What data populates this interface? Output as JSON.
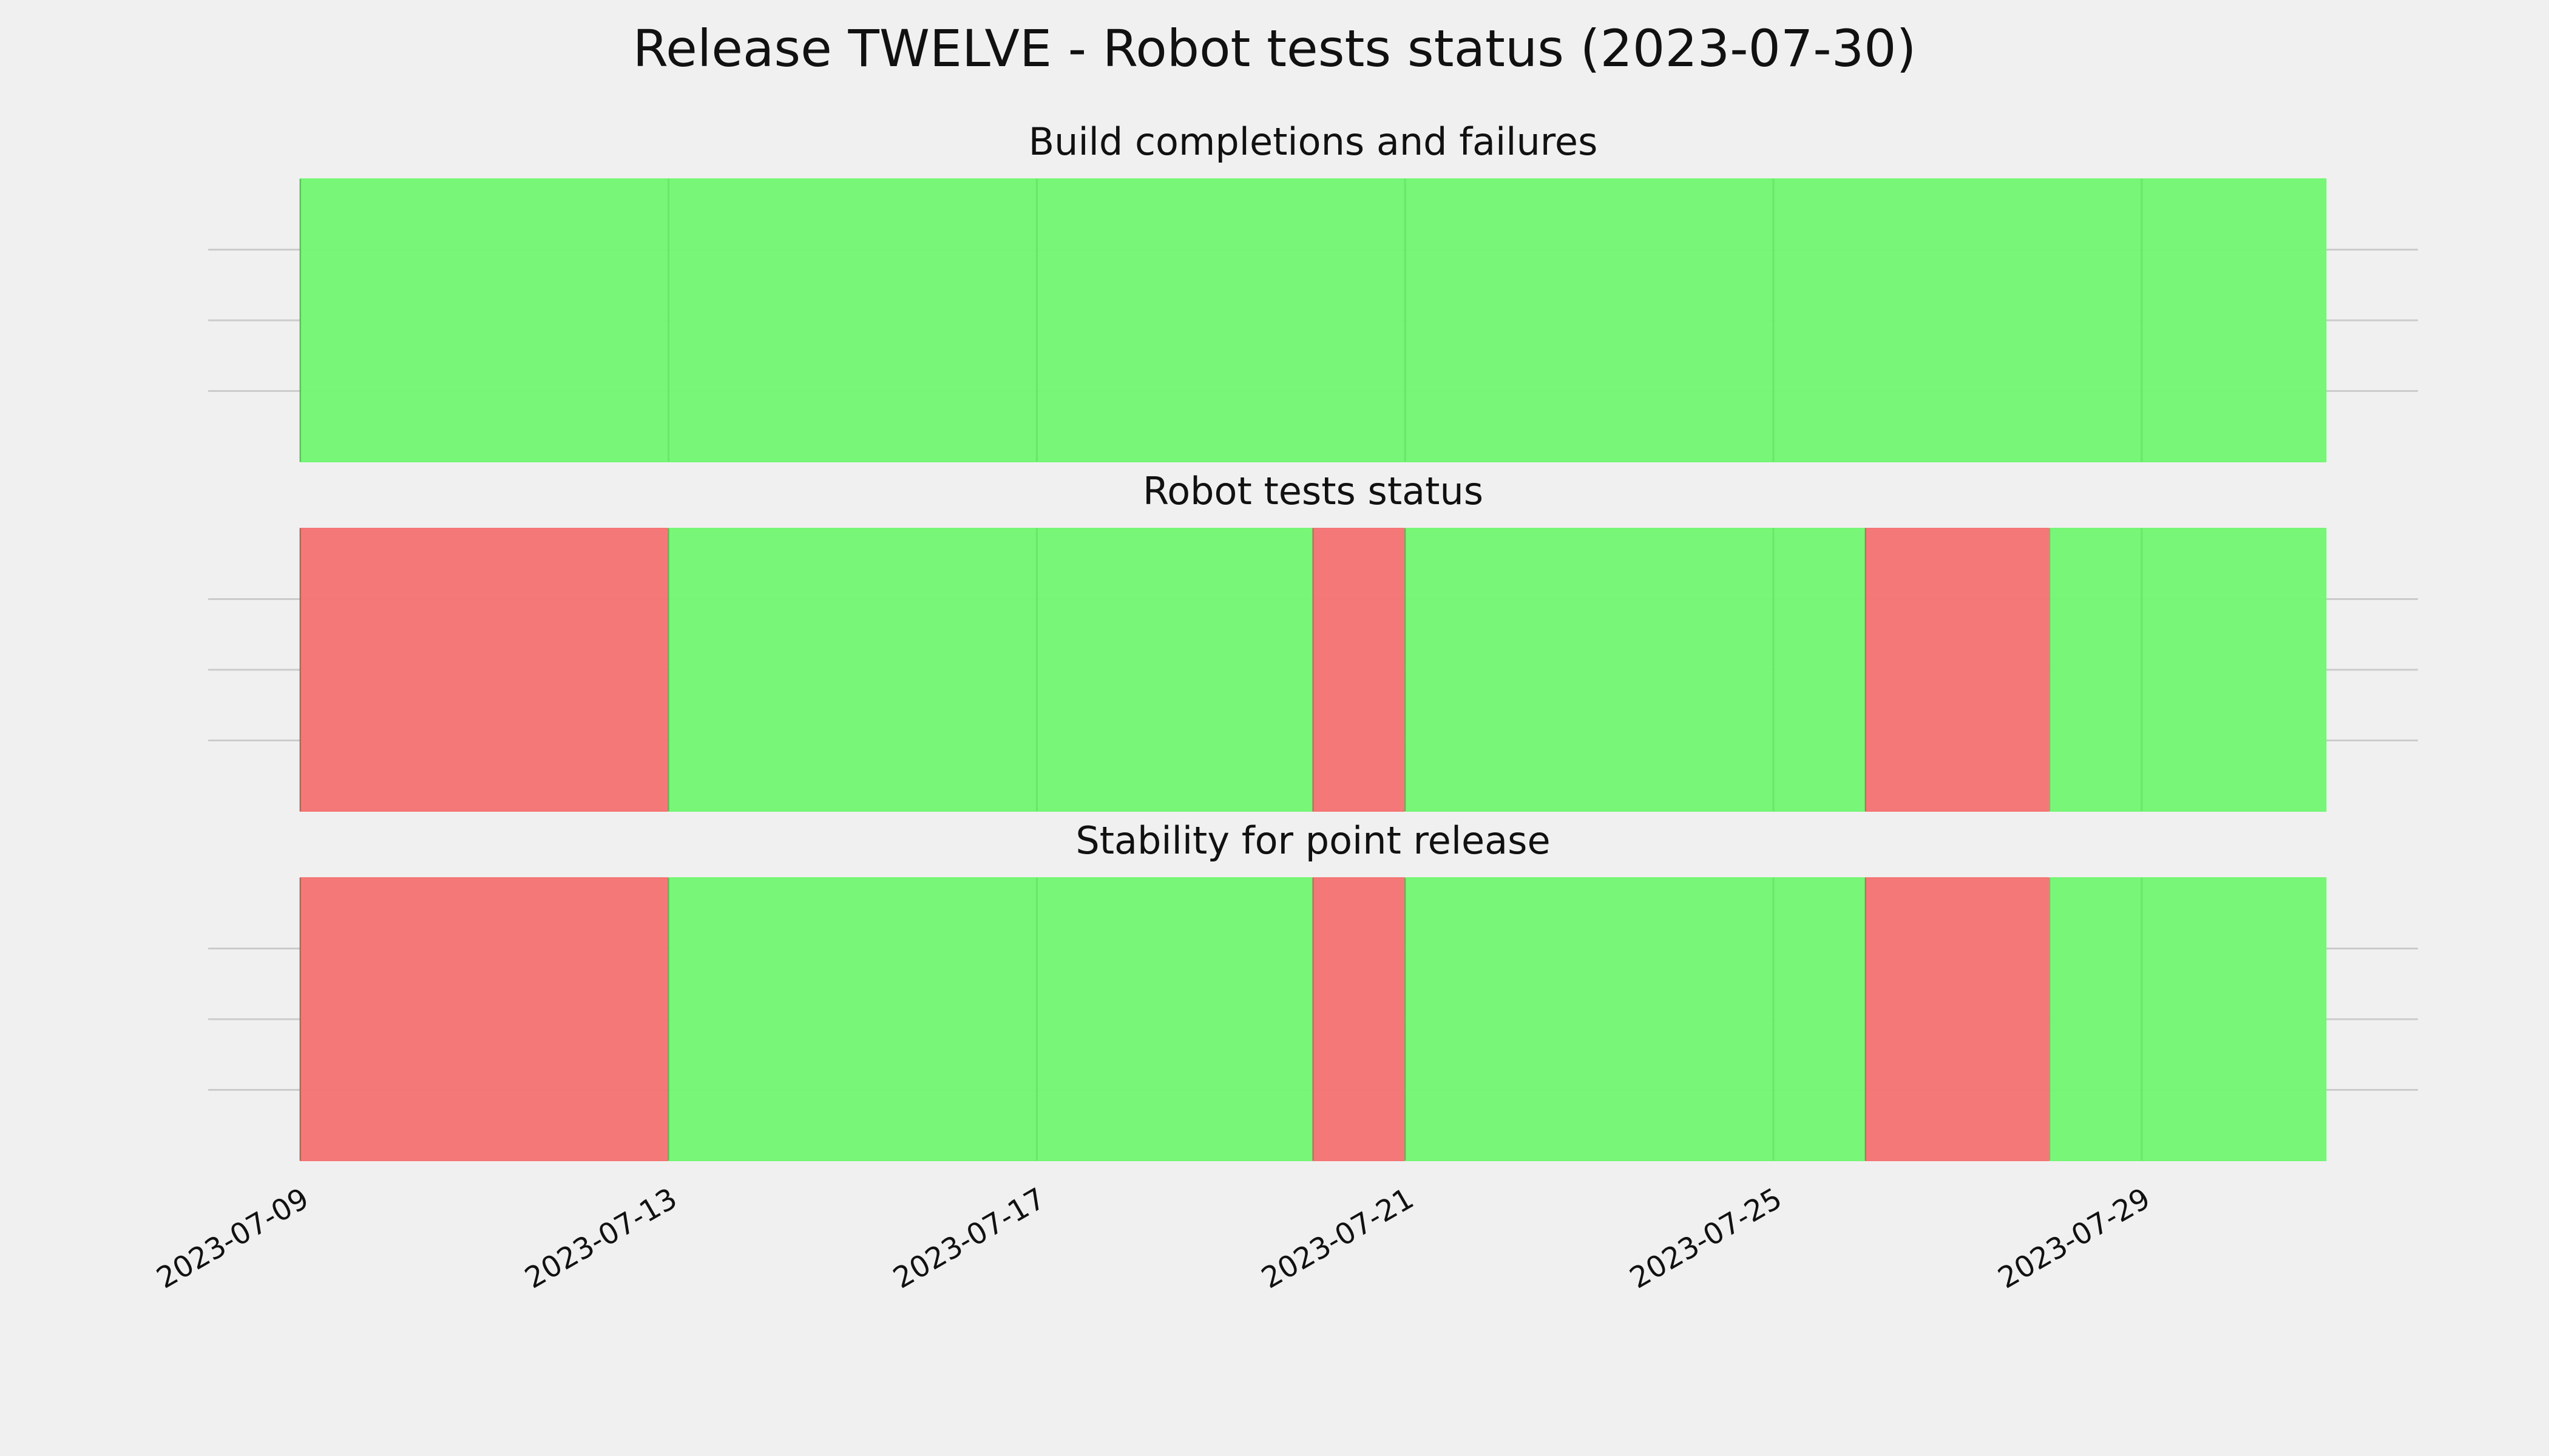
{
  "title": "Release TWELVE - Robot tests status (2023-07-30)",
  "chart_data": [
    {
      "type": "timeline",
      "title": "Build completions and failures",
      "xlim": [
        "2023-07-08",
        "2023-08-01"
      ],
      "grid": true,
      "spans": [
        {
          "start": "2023-07-09",
          "end": "2023-07-31",
          "color": "#74f674"
        }
      ]
    },
    {
      "type": "timeline",
      "title": "Robot tests status",
      "xlim": [
        "2023-07-08",
        "2023-08-01"
      ],
      "grid": true,
      "spans": [
        {
          "start": "2023-07-09",
          "end": "2023-07-13",
          "color": "#f57474"
        },
        {
          "start": "2023-07-13",
          "end": "2023-07-20",
          "color": "#74f674"
        },
        {
          "start": "2023-07-20",
          "end": "2023-07-21",
          "color": "#f57474"
        },
        {
          "start": "2023-07-21",
          "end": "2023-07-26",
          "color": "#74f674"
        },
        {
          "start": "2023-07-26",
          "end": "2023-07-28",
          "color": "#f57474"
        },
        {
          "start": "2023-07-28",
          "end": "2023-07-31",
          "color": "#74f674"
        }
      ]
    },
    {
      "type": "timeline",
      "title": "Stability for point release",
      "xlim": [
        "2023-07-08",
        "2023-08-01"
      ],
      "grid": true,
      "xticks": [
        "2023-07-09",
        "2023-07-13",
        "2023-07-17",
        "2023-07-21",
        "2023-07-25",
        "2023-07-29"
      ],
      "spans": [
        {
          "start": "2023-07-09",
          "end": "2023-07-13",
          "color": "#f57474"
        },
        {
          "start": "2023-07-13",
          "end": "2023-07-20",
          "color": "#74f674"
        },
        {
          "start": "2023-07-20",
          "end": "2023-07-21",
          "color": "#f57474"
        },
        {
          "start": "2023-07-21",
          "end": "2023-07-26",
          "color": "#74f674"
        },
        {
          "start": "2023-07-26",
          "end": "2023-07-28",
          "color": "#f57474"
        },
        {
          "start": "2023-07-28",
          "end": "2023-07-31",
          "color": "#74f674"
        }
      ]
    }
  ]
}
